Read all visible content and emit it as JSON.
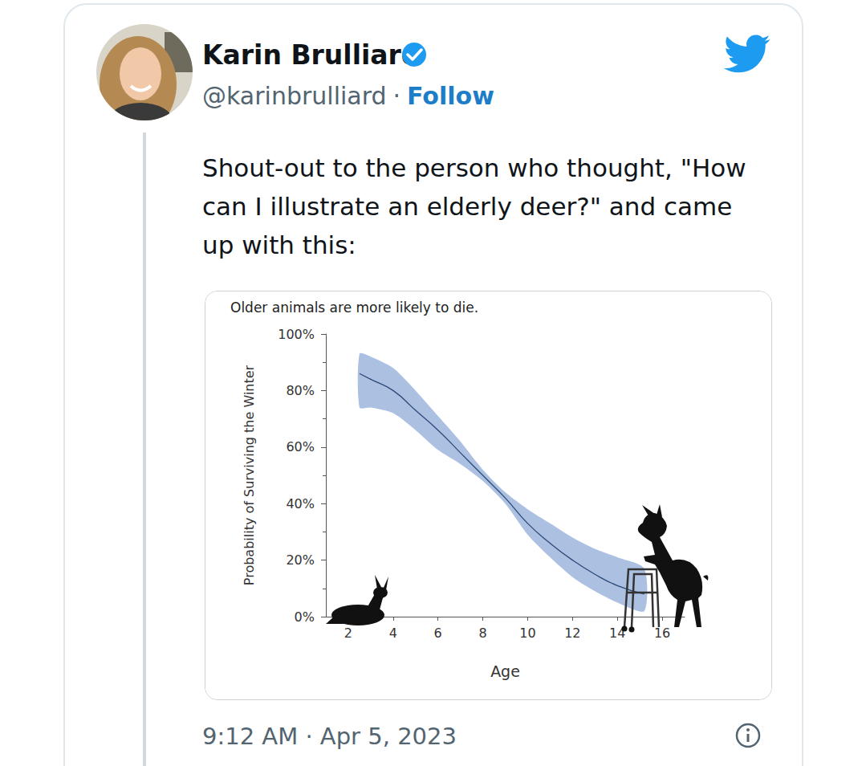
{
  "tweet": {
    "name": "Karin Brulliard",
    "handle": "@karinbrulliard",
    "separator": "·",
    "follow": "Follow",
    "text_lines": [
      "Shout-out to the person who thought, \"How",
      "can I illustrate an elderly deer?\" and came",
      "up with this:"
    ],
    "timestamp": "9:12 AM · Apr 5, 2023"
  },
  "chart_data": {
    "type": "line",
    "title": "Older animals are more likely to die.",
    "x_label": "Age",
    "y_label": "Probability of Surviving the Winter",
    "x": [
      2.5,
      3,
      4,
      5,
      6,
      7,
      8,
      9,
      10,
      11,
      12,
      13,
      14,
      15.2
    ],
    "values": [
      86,
      84,
      80,
      73,
      66,
      58,
      50,
      42,
      33,
      26,
      20,
      15,
      11,
      8
    ],
    "lower": [
      74,
      74,
      72,
      66,
      59,
      54,
      48,
      40,
      29,
      21,
      14,
      9,
      5,
      2
    ],
    "upper": [
      93,
      92,
      88,
      80,
      71,
      62,
      52,
      44,
      38,
      33,
      28,
      24,
      21,
      17
    ],
    "color": "#2c4a78",
    "xlim": [
      1,
      17
    ],
    "xticks": [
      2,
      4,
      6,
      8,
      10,
      12,
      14,
      16
    ],
    "ylim": [
      0,
      100
    ],
    "yticks": [
      {
        "value": 0,
        "label": "0%"
      },
      {
        "value": 20,
        "label": "20%"
      },
      {
        "value": 40,
        "label": "40%"
      },
      {
        "value": 60,
        "label": "60%"
      },
      {
        "value": 80,
        "label": "80%"
      },
      {
        "value": 100,
        "label": "100%"
      }
    ],
    "grid": false
  }
}
